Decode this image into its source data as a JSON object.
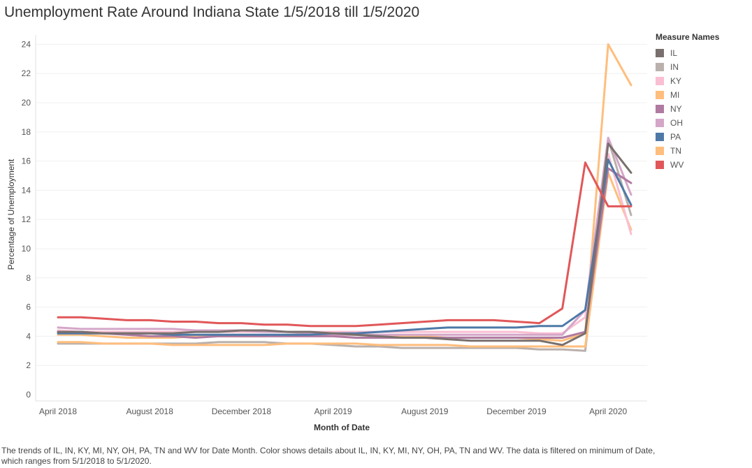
{
  "page": {
    "title": "Unemployment Rate Around Indiana State 1/5/2018 till 1/5/2020",
    "caption": "The trends of IL, IN, KY, MI, NY, OH, PA, TN and WV for Date Month.  Color shows details about IL, IN, KY, MI, NY, OH, PA, TN and WV. The data is filtered on minimum of Date, which ranges from 5/1/2018 to 5/1/2020."
  },
  "legend": {
    "title": "Measure Names",
    "items": [
      {
        "label": "IL",
        "color": "#79706e"
      },
      {
        "label": "IN",
        "color": "#bab0ac"
      },
      {
        "label": "KY",
        "color": "#fabfd2"
      },
      {
        "label": "MI",
        "color": "#ffbe7d"
      },
      {
        "label": "NY",
        "color": "#b07aa1"
      },
      {
        "label": "OH",
        "color": "#d4a6c8"
      },
      {
        "label": "PA",
        "color": "#4e79a7"
      },
      {
        "label": "TN",
        "color": "#ffbe7d"
      },
      {
        "label": "WV",
        "color": "#e15759"
      }
    ]
  },
  "chart_data": {
    "type": "line",
    "title": "Unemployment Rate Around Indiana State 1/5/2018 till 1/5/2020",
    "xlabel": "Month of Date",
    "ylabel": "Percentage of Unemployment",
    "x": [
      "2018-04",
      "2018-05",
      "2018-06",
      "2018-07",
      "2018-08",
      "2018-09",
      "2018-10",
      "2018-11",
      "2018-12",
      "2019-01",
      "2019-02",
      "2019-03",
      "2019-04",
      "2019-05",
      "2019-06",
      "2019-07",
      "2019-08",
      "2019-09",
      "2019-10",
      "2019-11",
      "2019-12",
      "2020-01",
      "2020-02",
      "2020-03",
      "2020-04",
      "2020-05"
    ],
    "x_tick_labels": [
      {
        "x": "2018-04",
        "label": "April 2018"
      },
      {
        "x": "2018-08",
        "label": "August 2018"
      },
      {
        "x": "2018-12",
        "label": "December 2018"
      },
      {
        "x": "2019-04",
        "label": "April 2019"
      },
      {
        "x": "2019-08",
        "label": "August 2019"
      },
      {
        "x": "2019-12",
        "label": "December 2019"
      },
      {
        "x": "2020-04",
        "label": "April 2020"
      }
    ],
    "yticks": [
      0,
      2,
      4,
      6,
      8,
      10,
      12,
      14,
      16,
      18,
      20,
      22,
      24
    ],
    "ylim": [
      0,
      25
    ],
    "grid": "horizontal",
    "legend_position": "right",
    "series": [
      {
        "name": "IN",
        "color": "#bab0ac",
        "values": [
          3.5,
          3.5,
          3.5,
          3.5,
          3.5,
          3.5,
          3.5,
          3.6,
          3.6,
          3.6,
          3.5,
          3.5,
          3.4,
          3.3,
          3.3,
          3.2,
          3.2,
          3.2,
          3.2,
          3.2,
          3.2,
          3.1,
          3.1,
          3.0,
          17.5,
          12.3
        ]
      },
      {
        "name": "MI",
        "color": "#ffbe7d",
        "values": [
          4.1,
          4.1,
          4.0,
          3.9,
          3.9,
          3.9,
          4.0,
          4.0,
          4.0,
          4.0,
          4.1,
          4.1,
          4.1,
          4.1,
          4.0,
          4.0,
          4.0,
          3.9,
          3.9,
          3.9,
          3.9,
          3.8,
          3.7,
          4.2,
          24.0,
          21.2
        ]
      },
      {
        "name": "TN",
        "color": "#ffbe7d",
        "values": [
          3.6,
          3.6,
          3.5,
          3.5,
          3.5,
          3.4,
          3.4,
          3.4,
          3.4,
          3.4,
          3.5,
          3.5,
          3.5,
          3.5,
          3.4,
          3.4,
          3.4,
          3.4,
          3.3,
          3.3,
          3.3,
          3.3,
          3.3,
          3.3,
          15.2,
          11.3
        ]
      },
      {
        "name": "KY",
        "color": "#fabfd2",
        "values": [
          4.4,
          4.3,
          4.3,
          4.3,
          4.3,
          4.3,
          4.3,
          4.3,
          4.3,
          4.3,
          4.3,
          4.3,
          4.3,
          4.3,
          4.3,
          4.3,
          4.3,
          4.3,
          4.3,
          4.3,
          4.3,
          4.2,
          4.2,
          5.3,
          16.5,
          11.0
        ]
      },
      {
        "name": "OH",
        "color": "#d4a6c8",
        "values": [
          4.6,
          4.5,
          4.5,
          4.5,
          4.5,
          4.5,
          4.4,
          4.4,
          4.4,
          4.3,
          4.3,
          4.2,
          4.1,
          4.1,
          4.1,
          4.1,
          4.1,
          4.1,
          4.1,
          4.1,
          4.1,
          4.1,
          4.1,
          5.8,
          17.6,
          13.7
        ]
      },
      {
        "name": "NY",
        "color": "#b07aa1",
        "values": [
          4.3,
          4.3,
          4.2,
          4.1,
          4.0,
          4.0,
          3.9,
          4.0,
          4.0,
          4.0,
          4.0,
          4.0,
          4.0,
          3.9,
          3.9,
          3.9,
          3.9,
          3.9,
          3.9,
          3.9,
          3.9,
          3.9,
          3.9,
          4.3,
          15.5,
          14.5
        ]
      },
      {
        "name": "PA",
        "color": "#4e79a7",
        "values": [
          4.2,
          4.2,
          4.2,
          4.2,
          4.2,
          4.1,
          4.1,
          4.1,
          4.1,
          4.1,
          4.1,
          4.1,
          4.2,
          4.2,
          4.3,
          4.4,
          4.5,
          4.6,
          4.6,
          4.6,
          4.6,
          4.7,
          4.7,
          5.8,
          16.1,
          13.0
        ]
      },
      {
        "name": "IL",
        "color": "#79706e",
        "values": [
          4.3,
          4.3,
          4.2,
          4.2,
          4.2,
          4.2,
          4.3,
          4.3,
          4.4,
          4.4,
          4.3,
          4.3,
          4.2,
          4.1,
          4.0,
          3.9,
          3.9,
          3.8,
          3.7,
          3.7,
          3.7,
          3.7,
          3.4,
          4.2,
          17.2,
          15.2
        ]
      },
      {
        "name": "WV",
        "color": "#e15759",
        "values": [
          5.3,
          5.3,
          5.2,
          5.1,
          5.1,
          5.0,
          5.0,
          4.9,
          4.9,
          4.8,
          4.8,
          4.7,
          4.7,
          4.7,
          4.8,
          4.9,
          5.0,
          5.1,
          5.1,
          5.1,
          5.0,
          4.9,
          5.9,
          15.9,
          12.9,
          12.9
        ]
      }
    ]
  }
}
